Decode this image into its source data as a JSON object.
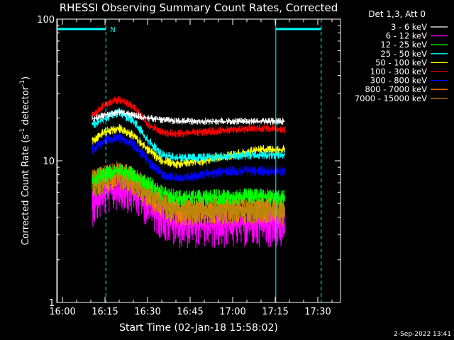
{
  "chart_data": {
    "type": "line",
    "title": "RHESSI Observing Summary Count Rates, Corrected",
    "xlabel": "Start Time (02-Jan-18 15:58:02)",
    "ylabel_main": "Corrected Count Rate (s",
    "ylabel_sup1": "-1",
    "ylabel_mid": " detector",
    "ylabel_sup2": "-1",
    "ylabel_end": ")",
    "yscale": "log",
    "ylim": [
      1,
      100
    ],
    "xlim_minutes": [
      958,
      1058
    ],
    "x_ticks": [
      {
        "minute": 960,
        "label": "16:00"
      },
      {
        "minute": 975,
        "label": "16:15"
      },
      {
        "minute": 990,
        "label": "16:30"
      },
      {
        "minute": 1005,
        "label": "16:45"
      },
      {
        "minute": 1020,
        "label": "17:00"
      },
      {
        "minute": 1035,
        "label": "17:15"
      },
      {
        "minute": 1050,
        "label": "17:30"
      }
    ],
    "y_ticks": [
      {
        "value": 1,
        "label": "1"
      },
      {
        "value": 10,
        "label": "10"
      },
      {
        "value": 100,
        "label": "100"
      }
    ],
    "legend_title": "Det 1,3, Att 0",
    "legend_position": "top-right",
    "data_window_minutes": [
      970.5,
      1038.5
    ],
    "series": [
      {
        "name": "3 - 6 keV",
        "color": "#ffffff",
        "x": [
          971,
          975,
          980,
          985,
          990,
          995,
          1000,
          1010,
          1020,
          1030,
          1038
        ],
        "values": [
          20,
          21,
          22,
          21,
          20,
          19.5,
          19,
          19,
          19,
          19,
          19
        ]
      },
      {
        "name": "6 - 12 keV",
        "color": "#ff00ff",
        "x": [
          971,
          975,
          980,
          985,
          990,
          995,
          1000,
          1010,
          1020,
          1030,
          1038
        ],
        "values": [
          5,
          6,
          6.5,
          6,
          5,
          4,
          3.5,
          3.5,
          3.5,
          3.6,
          3.5
        ]
      },
      {
        "name": "12 - 25 keV",
        "color": "#00ff00",
        "x": [
          971,
          975,
          980,
          985,
          990,
          995,
          1000,
          1010,
          1020,
          1030,
          1038
        ],
        "values": [
          7.5,
          8,
          8.5,
          8,
          7,
          6,
          5.5,
          5.5,
          5.6,
          5.6,
          5.5
        ]
      },
      {
        "name": "25 - 50 keV",
        "color": "#00ffff",
        "x": [
          971,
          975,
          980,
          985,
          990,
          995,
          1000,
          1010,
          1020,
          1030,
          1038
        ],
        "values": [
          18,
          20,
          22,
          19,
          14,
          11,
          10.5,
          10.5,
          10.8,
          11,
          11
        ]
      },
      {
        "name": "50 - 100 keV",
        "color": "#ffff00",
        "x": [
          971,
          975,
          980,
          985,
          990,
          995,
          1000,
          1010,
          1020,
          1030,
          1038
        ],
        "values": [
          14,
          16,
          17,
          15,
          12,
          10,
          9.5,
          10,
          11,
          12,
          12
        ]
      },
      {
        "name": "100 - 300 keV",
        "color": "#ff0000",
        "x": [
          971,
          975,
          980,
          985,
          990,
          995,
          1000,
          1010,
          1020,
          1030,
          1038
        ],
        "values": [
          21,
          25,
          27,
          24,
          18,
          16,
          15.5,
          16,
          16.5,
          17,
          16.5
        ]
      },
      {
        "name": "300 - 800 keV",
        "color": "#0000ff",
        "x": [
          971,
          975,
          980,
          985,
          990,
          995,
          1000,
          1010,
          1020,
          1030,
          1038
        ],
        "values": [
          12,
          14,
          14.5,
          13,
          10,
          8,
          7.5,
          8,
          8.5,
          8.5,
          8.5
        ]
      },
      {
        "name": "800 - 7000 keV",
        "color": "#ff8000",
        "x": [
          971,
          975,
          980,
          985,
          990,
          995,
          1000,
          1010,
          1020,
          1030,
          1038
        ],
        "values": [
          7,
          7.5,
          8,
          7.5,
          6,
          5,
          4.5,
          4.5,
          4.6,
          4.6,
          4.5
        ]
      },
      {
        "name": "7000 - 15000 keV",
        "color": "#b8860b",
        "x": [
          971,
          975,
          980,
          985,
          990,
          995,
          1000,
          1010,
          1020,
          1030,
          1038
        ],
        "values": [
          7,
          7.5,
          8,
          7,
          6,
          5,
          4.5,
          4.5,
          4.5,
          4.5,
          4.5
        ]
      }
    ],
    "annotations": {
      "night_marker": "N",
      "solid_cyan_lines_minutes": [
        958.3,
        1035.2
      ],
      "dashed_cyan_lines_minutes": [
        975.3,
        1051.2
      ],
      "top_bars_minutes": [
        [
          958.3,
          975.3
        ],
        [
          1035.2,
          1051.2
        ]
      ],
      "color": "#00ffff"
    },
    "grid": false
  },
  "footer": {
    "timestamp": "2-Sep-2022 13:41"
  }
}
